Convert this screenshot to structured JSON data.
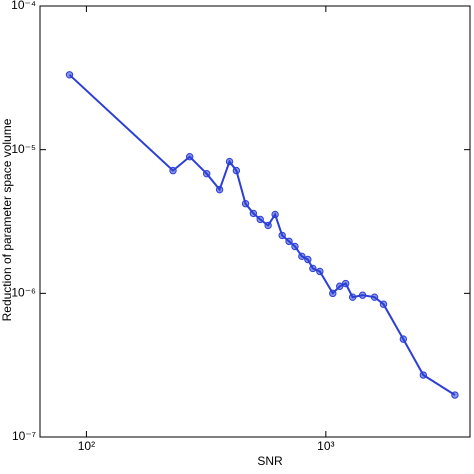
{
  "chart_data": {
    "type": "line",
    "x_label": "SNR",
    "y_label": "Reduction of parameter space volume",
    "x": [
      85,
      230,
      270,
      318,
      360,
      396,
      423,
      462,
      498,
      532,
      574,
      614,
      657,
      702,
      743,
      794,
      841,
      883,
      944,
      1069,
      1143,
      1210,
      1294,
      1424,
      1597,
      1741,
      2107,
      2553,
      3460
    ],
    "series": [
      {
        "color": "#2b3fd6",
        "values": [
          3.32e-05,
          7.15e-06,
          8.93e-06,
          6.8e-06,
          5.27e-06,
          8.26e-06,
          7.15e-06,
          4.21e-06,
          3.6e-06,
          3.27e-06,
          2.97e-06,
          3.54e-06,
          2.53e-06,
          2.3e-06,
          2.12e-06,
          1.81e-06,
          1.72e-06,
          1.49e-06,
          1.42e-06,
          1e-06,
          1.12e-06,
          1.17e-06,
          9.4e-07,
          9.7e-07,
          9.4e-07,
          8.4e-07,
          4.8e-07,
          2.7e-07,
          1.96e-07
        ]
      }
    ],
    "xlim": [
      64,
      4000
    ],
    "ylim": [
      1e-07,
      0.0001
    ],
    "xticks": [
      {
        "value": 100,
        "label": "10²"
      },
      {
        "value": 1000,
        "label": "10³"
      }
    ],
    "yticks": [
      {
        "value": 1e-07,
        "label": "10⁻⁷"
      },
      {
        "value": 1e-06,
        "label": "10⁻⁶"
      },
      {
        "value": 1e-05,
        "label": "10⁻⁵"
      },
      {
        "value": 0.0001,
        "label": "10⁻⁴"
      }
    ],
    "xscale": "log",
    "yscale": "log"
  }
}
